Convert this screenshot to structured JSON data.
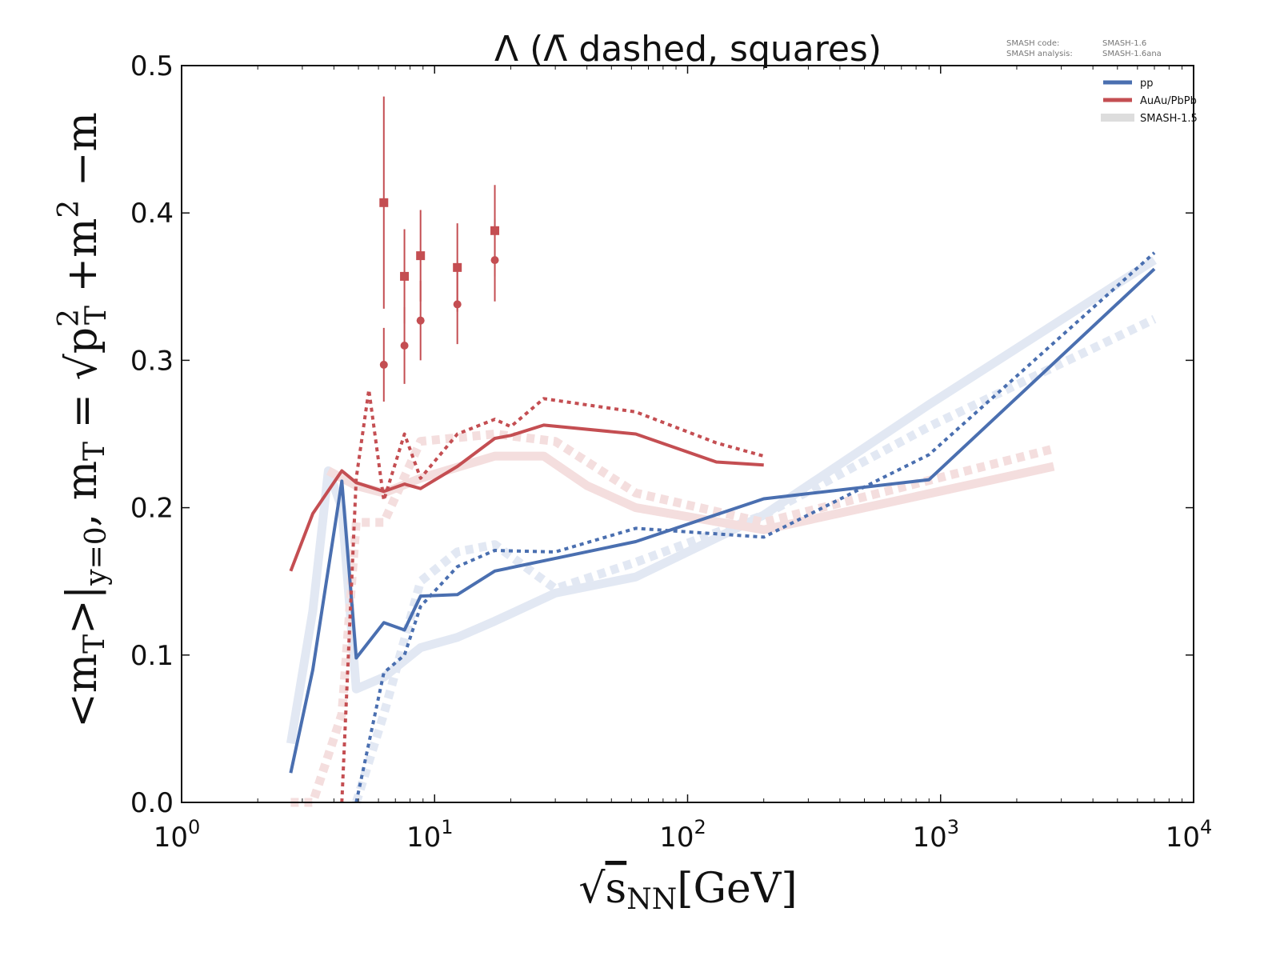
{
  "chart_data": {
    "type": "line",
    "title": "Λ (Λ̄ dashed, squares)",
    "meta": {
      "code_label": "SMASH code:",
      "code_value": "SMASH-1.6",
      "analysis_label": "SMASH analysis:",
      "analysis_value": "SMASH-1.6ana"
    },
    "xlabel": {
      "root": "√",
      "s": "s",
      "sub": "NN",
      "unit": "[GeV]"
    },
    "ylabel": {
      "a": "<m",
      "a_sub": "T",
      "b": ">|",
      "b_sub": "y=0",
      "c": ", m",
      "c_sub": "T",
      "d": " = √",
      "e": "p",
      "e_sup": "2",
      "e_sub": "T",
      "f": " +m",
      "f_sup": "2",
      "g": " −m"
    },
    "xscale": "log",
    "xlim": [
      1,
      10000
    ],
    "ylim": [
      0.0,
      0.5
    ],
    "xticks": [
      {
        "v": 1,
        "b": "10",
        "e": "0"
      },
      {
        "v": 10,
        "b": "10",
        "e": "1"
      },
      {
        "v": 100,
        "b": "10",
        "e": "2"
      },
      {
        "v": 1000,
        "b": "10",
        "e": "3"
      },
      {
        "v": 10000,
        "b": "10",
        "e": "4"
      }
    ],
    "yticks": [
      {
        "v": 0.0,
        "t": "0.0"
      },
      {
        "v": 0.1,
        "t": "0.1"
      },
      {
        "v": 0.2,
        "t": "0.2"
      },
      {
        "v": 0.3,
        "t": "0.3"
      },
      {
        "v": 0.4,
        "t": "0.4"
      },
      {
        "v": 0.5,
        "t": "0.5"
      }
    ],
    "grid": false,
    "legend": {
      "placement": "top-right",
      "entries": [
        {
          "label": "pp",
          "color": "#4a6fb0"
        },
        {
          "label": "AuAu/PbPb",
          "color": "#c44e52"
        },
        {
          "label": "SMASH-1.5",
          "color": "#dddddd"
        }
      ]
    },
    "colors": {
      "pp": "#4a6fb0",
      "AA": "#c44e52",
      "pp_old": "#e2e8f3",
      "AA_old": "#f4dede"
    },
    "series": [
      {
        "group": "SMASH-1.5",
        "system": "pp",
        "style": "solid",
        "x": [
          2.7,
          3.3,
          3.8,
          4.3,
          4.9,
          6.3,
          8.8,
          12.3,
          17.3,
          30,
          62.4,
          200,
          900,
          7000
        ],
        "y": [
          0.04,
          0.13,
          0.225,
          0.2,
          0.077,
          0.085,
          0.105,
          0.112,
          0.123,
          0.142,
          0.153,
          0.195,
          0.27,
          0.368
        ]
      },
      {
        "group": "SMASH-1.5",
        "system": "pp",
        "style": "dashed",
        "x": [
          4.9,
          6.3,
          8.8,
          12.3,
          17.3,
          30,
          62.4,
          200,
          900,
          7000
        ],
        "y": [
          0.0,
          0.06,
          0.15,
          0.17,
          0.175,
          0.145,
          0.163,
          0.195,
          0.255,
          0.328
        ]
      },
      {
        "group": "SMASH-1.5",
        "system": "AA",
        "style": "solid",
        "x": [
          3.8,
          4.9,
          6.3,
          8.8,
          17.3,
          27,
          40,
          62.4,
          200,
          2800
        ],
        "y": [
          0.225,
          0.215,
          0.21,
          0.22,
          0.235,
          0.235,
          0.215,
          0.2,
          0.185,
          0.228
        ]
      },
      {
        "group": "SMASH-1.5",
        "system": "AA",
        "style": "dashed",
        "x": [
          2.7,
          3.3,
          4.3,
          4.9,
          6.3,
          8.8,
          17.3,
          30,
          62.4,
          200,
          2800
        ],
        "y": [
          0.0,
          0.0,
          0.06,
          0.19,
          0.19,
          0.245,
          0.25,
          0.245,
          0.21,
          0.19,
          0.24
        ]
      },
      {
        "group": "current",
        "system": "pp",
        "style": "solid",
        "x": [
          2.7,
          3.3,
          4.3,
          4.9,
          6.3,
          7.6,
          8.8,
          12.3,
          17.3,
          62.4,
          200,
          900,
          7000
        ],
        "y": [
          0.02,
          0.09,
          0.218,
          0.098,
          0.122,
          0.117,
          0.14,
          0.141,
          0.157,
          0.177,
          0.206,
          0.219,
          0.362
        ]
      },
      {
        "group": "current",
        "system": "pp",
        "style": "dashed",
        "x": [
          4.9,
          6.3,
          7.6,
          8.8,
          12.3,
          17.3,
          30,
          62.4,
          200,
          900,
          7000
        ],
        "y": [
          0.0,
          0.088,
          0.1,
          0.133,
          0.16,
          0.171,
          0.17,
          0.186,
          0.18,
          0.236,
          0.373
        ]
      },
      {
        "group": "current",
        "system": "AA",
        "style": "solid",
        "x": [
          2.7,
          3.3,
          4.3,
          4.9,
          6.3,
          7.6,
          8.8,
          12.3,
          17.3,
          20,
          27,
          62.4,
          130,
          200
        ],
        "y": [
          0.157,
          0.196,
          0.225,
          0.217,
          0.211,
          0.216,
          0.213,
          0.228,
          0.247,
          0.249,
          0.256,
          0.25,
          0.231,
          0.229
        ]
      },
      {
        "group": "current",
        "system": "AA",
        "style": "dashed",
        "x": [
          4.3,
          4.9,
          5.5,
          6.3,
          7.6,
          8.8,
          12.3,
          17.3,
          20,
          27,
          62.4,
          130,
          200
        ],
        "y": [
          0.0,
          0.22,
          0.28,
          0.205,
          0.25,
          0.22,
          0.25,
          0.26,
          0.255,
          0.274,
          0.265,
          0.244,
          0.235
        ]
      }
    ],
    "measurements": [
      {
        "marker": "square",
        "x": [
          6.3,
          7.6,
          8.8,
          12.3,
          17.3
        ],
        "y": [
          0.407,
          0.357,
          0.371,
          0.363,
          0.388
        ],
        "err": [
          0.072,
          0.032,
          0.031,
          0.03,
          0.031
        ]
      },
      {
        "marker": "circle",
        "x": [
          6.3,
          7.6,
          8.8,
          12.3,
          17.3
        ],
        "y": [
          0.297,
          0.31,
          0.327,
          0.338,
          0.368
        ],
        "err": [
          0.025,
          0.026,
          0.027,
          0.027,
          0.028
        ]
      }
    ]
  }
}
